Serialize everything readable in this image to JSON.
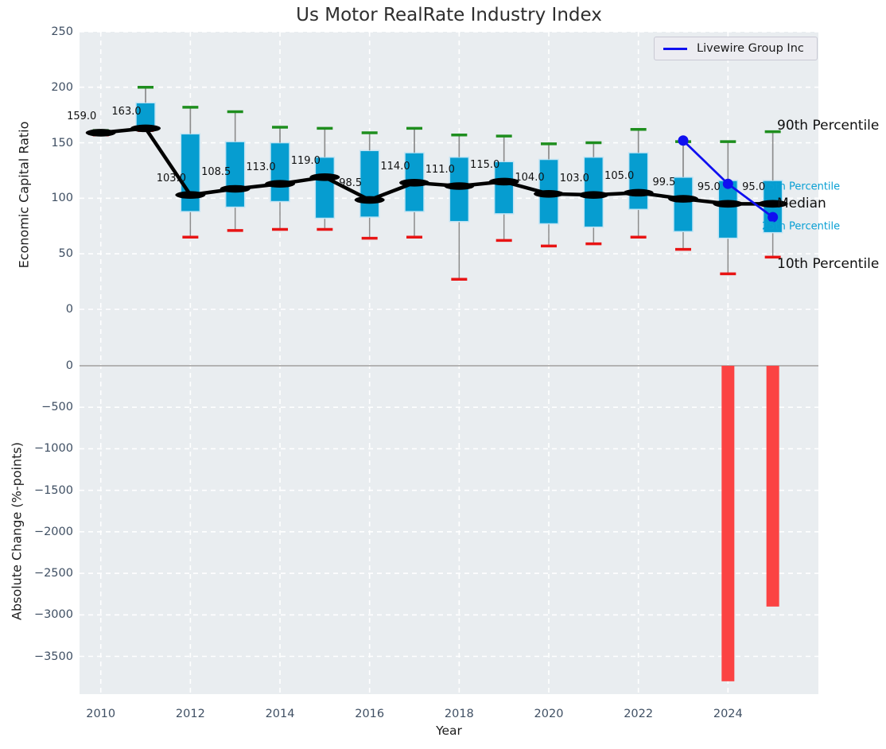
{
  "chart": {
    "title": "Us Motor RealRate Industry Index",
    "xlabel": "Year",
    "ylabel_top": "Economic Capital Ratio",
    "ylabel_bottom": "Absolute Change (%-points)",
    "legend": {
      "label": "Livewire Group Inc"
    },
    "annotations": [
      {
        "key": "p90",
        "text": "90th Percentile",
        "style": "major"
      },
      {
        "key": "p75",
        "text": "75th Percentile",
        "style": "minor"
      },
      {
        "key": "median",
        "text": "Median",
        "style": "major"
      },
      {
        "key": "p25",
        "text": "25th Percentile",
        "style": "minor"
      },
      {
        "key": "p10",
        "text": "10th Percentile",
        "style": "major"
      }
    ]
  },
  "chart_data": {
    "type": "boxplot+line+bar",
    "panels": [
      {
        "name": "top",
        "ylabel": "Economic Capital Ratio",
        "grid": true,
        "yticks": [
          {
            "v": 250,
            "label": "250"
          },
          {
            "v": 200,
            "label": "200"
          },
          {
            "v": 150,
            "label": "150"
          },
          {
            "v": 100,
            "label": "100"
          },
          {
            "v": 50,
            "label": "50"
          },
          {
            "v": 0,
            "label": "0"
          }
        ]
      },
      {
        "name": "bottom",
        "ylabel": "Absolute Change (%-points)",
        "grid": true,
        "yticks": [
          {
            "v": 0,
            "label": "0"
          },
          {
            "v": -500,
            "label": "−500"
          },
          {
            "v": -1000,
            "label": "−1000"
          },
          {
            "v": -1500,
            "label": "−1500"
          },
          {
            "v": -2000,
            "label": "−2000"
          },
          {
            "v": -2500,
            "label": "−2500"
          },
          {
            "v": -3000,
            "label": "−3000"
          },
          {
            "v": -3500,
            "label": "−3500"
          }
        ]
      }
    ],
    "xticks": [
      {
        "v": 2010,
        "label": "2010"
      },
      {
        "v": 2012,
        "label": "2012"
      },
      {
        "v": 2014,
        "label": "2014"
      },
      {
        "v": 2016,
        "label": "2016"
      },
      {
        "v": 2018,
        "label": "2018"
      },
      {
        "v": 2020,
        "label": "2020"
      },
      {
        "v": 2022,
        "label": "2022"
      },
      {
        "v": 2024,
        "label": "2024"
      }
    ],
    "boxes": [
      {
        "year": 2010,
        "p10": 157,
        "p25": 158,
        "median": 159.0,
        "p75": 160,
        "p90": 161,
        "label": "159.0"
      },
      {
        "year": 2011,
        "p10": 161,
        "p25": 162,
        "median": 163.0,
        "p75": 186,
        "p90": 200,
        "label": "163.0"
      },
      {
        "year": 2012,
        "p10": 65,
        "p25": 88,
        "median": 103.0,
        "p75": 158,
        "p90": 182,
        "label": "103.0"
      },
      {
        "year": 2013,
        "p10": 71,
        "p25": 92,
        "median": 108.5,
        "p75": 151,
        "p90": 178,
        "label": "108.5"
      },
      {
        "year": 2014,
        "p10": 72,
        "p25": 97,
        "median": 113.0,
        "p75": 150,
        "p90": 164,
        "label": "113.0"
      },
      {
        "year": 2015,
        "p10": 72,
        "p25": 82,
        "median": 119.0,
        "p75": 137,
        "p90": 163,
        "label": "119.0"
      },
      {
        "year": 2016,
        "p10": 64,
        "p25": 83,
        "median": 98.5,
        "p75": 143,
        "p90": 159,
        "label": "98.5"
      },
      {
        "year": 2017,
        "p10": 65,
        "p25": 88,
        "median": 114.0,
        "p75": 141,
        "p90": 163,
        "label": "114.0"
      },
      {
        "year": 2018,
        "p10": 27,
        "p25": 79,
        "median": 111.0,
        "p75": 137,
        "p90": 157,
        "label": "111.0"
      },
      {
        "year": 2019,
        "p10": 62,
        "p25": 86,
        "median": 115.0,
        "p75": 133,
        "p90": 156,
        "label": "115.0"
      },
      {
        "year": 2020,
        "p10": 57,
        "p25": 77,
        "median": 104.0,
        "p75": 135,
        "p90": 149,
        "label": "104.0"
      },
      {
        "year": 2021,
        "p10": 59,
        "p25": 74,
        "median": 103.0,
        "p75": 137,
        "p90": 150,
        "label": "103.0"
      },
      {
        "year": 2022,
        "p10": 65,
        "p25": 90,
        "median": 105.0,
        "p75": 141,
        "p90": 162,
        "label": "105.0"
      },
      {
        "year": 2023,
        "p10": 54,
        "p25": 70,
        "median": 99.5,
        "p75": 119,
        "p90": 151,
        "label": "99.5"
      },
      {
        "year": 2024,
        "p10": 32,
        "p25": 64,
        "median": 95.0,
        "p75": 116,
        "p90": 151,
        "label": "95.0"
      },
      {
        "year": 2025,
        "p10": 47,
        "p25": 69,
        "median": 95.0,
        "p75": 116,
        "p90": 160,
        "label": "95.0"
      }
    ],
    "company_series": {
      "name": "Livewire Group Inc",
      "points": [
        {
          "year": 2023,
          "value": 152
        },
        {
          "year": 2024,
          "value": 113
        },
        {
          "year": 2025,
          "value": 83
        }
      ]
    },
    "change_bars": [
      {
        "year": 2024,
        "value": -3800
      },
      {
        "year": 2025,
        "value": -2900
      }
    ]
  },
  "colors": {
    "box_fill": "#069dd0",
    "box_edge": "#c2e4f4",
    "p90_cap": "#1e8e1e",
    "p10_cap": "#e81414",
    "median_line": "#000000",
    "company_line": "#1010f0",
    "bar_negative": "#fb4343",
    "panel_bg": "#e9edf0",
    "grid": "#ffffff",
    "whisker": "#8c8c8c",
    "zero_line": "#b3b3b3",
    "tick_text": "#3f4f63",
    "annotation_minor": "#09a0d4"
  }
}
